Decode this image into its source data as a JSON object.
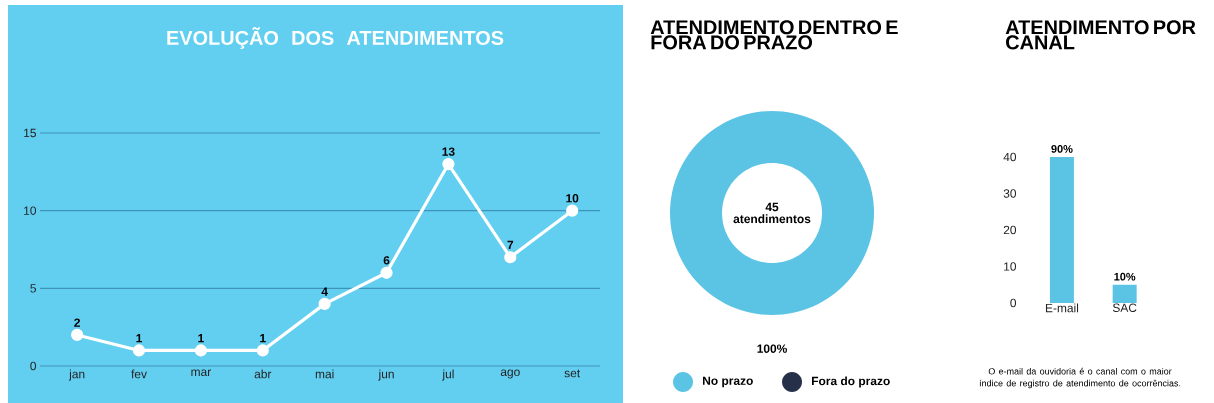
{
  "chart_data": [
    {
      "type": "line",
      "title": "EVOLUÇÃO DOS ATENDIMENTOS",
      "categories": [
        "jan",
        "fev",
        "mar",
        "abr",
        "mai",
        "jun",
        "jul",
        "ago",
        "set"
      ],
      "series": [
        {
          "color": "#ffffff",
          "values": [
            2,
            1,
            1,
            1,
            4,
            6,
            13,
            7,
            10
          ]
        }
      ],
      "ylim": [
        0,
        15
      ],
      "yticks": [
        0,
        5,
        10,
        15
      ],
      "grid": "y",
      "marker": "circle",
      "line_style": "solid",
      "data_labels": true
    },
    {
      "type": "donut",
      "title": "ATENDIMENTO DENTRO E FORA DO PRAZO",
      "categories": [
        "No prazo",
        "Fora do prazo"
      ],
      "values": [
        100,
        0
      ],
      "colors": [
        "#5bc4e4",
        "#263048"
      ],
      "value_labels": [
        "100%",
        null
      ],
      "annotations": [
        "45 atendimentos"
      ],
      "legend": "bottom"
    },
    {
      "type": "bar",
      "title": "ATENDIMENTO POR CANAL",
      "categories": [
        "E-mail",
        "SAC"
      ],
      "values": [
        40,
        5
      ],
      "color": "#5bc4e4",
      "ylim": [
        0,
        40
      ],
      "yticks": [
        0,
        10,
        20,
        30,
        40
      ],
      "annotations": [
        {
          "text": "90%",
          "x": "E-mail",
          "y": 40
        },
        {
          "text": "10%",
          "x": "SAC",
          "y": 5
        },
        "O e-mail da ouvidoria é o canal com o maior índice de registro de atendimento de ocorrências."
      ]
    }
  ]
}
